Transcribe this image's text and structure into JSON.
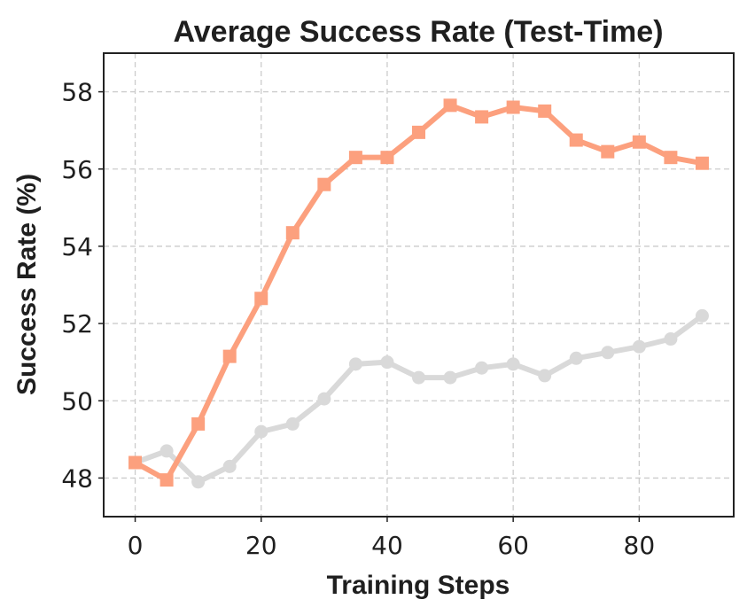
{
  "chart_data": {
    "type": "line",
    "title": "Average Success Rate (Test-Time)",
    "xlabel": "Training Steps",
    "ylabel": "Success Rate (%)",
    "xlim": [
      -5,
      95
    ],
    "ylim": [
      47,
      59
    ],
    "xticks": [
      0,
      20,
      40,
      60,
      80
    ],
    "yticks": [
      48,
      50,
      52,
      54,
      56,
      58
    ],
    "grid": true,
    "x": [
      0,
      5,
      10,
      15,
      20,
      25,
      30,
      35,
      40,
      45,
      50,
      55,
      60,
      65,
      70,
      75,
      80,
      85,
      90
    ],
    "series": [
      {
        "color": "#d9d9d9",
        "marker": "circle",
        "values": [
          48.4,
          48.7,
          47.9,
          48.3,
          49.2,
          49.4,
          50.05,
          50.95,
          51.0,
          50.6,
          50.6,
          50.85,
          50.95,
          50.65,
          51.1,
          51.25,
          51.4,
          51.6,
          52.2
        ]
      },
      {
        "color": "#fca07e",
        "marker": "square",
        "values": [
          48.4,
          47.95,
          49.4,
          51.15,
          52.65,
          54.35,
          55.6,
          56.3,
          56.3,
          56.95,
          57.65,
          57.35,
          57.6,
          57.5,
          56.75,
          56.45,
          56.7,
          56.3,
          56.15
        ]
      }
    ]
  }
}
